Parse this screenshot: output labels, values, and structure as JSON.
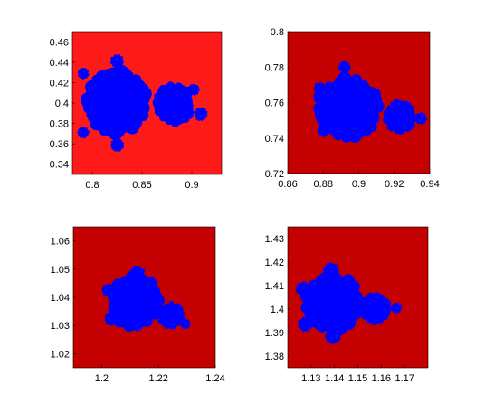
{
  "chart_data": [
    {
      "type": "heatmap",
      "title": "",
      "xlabel": "",
      "ylabel": "",
      "xlim": [
        0.78,
        0.93
      ],
      "ylim": [
        0.33,
        0.47
      ],
      "xticks": [
        "0.8",
        "0.85",
        "0.9"
      ],
      "xtick_values": [
        0.8,
        0.85,
        0.9
      ],
      "yticks": [
        "0.34",
        "0.36",
        "0.38",
        "0.4",
        "0.42",
        "0.44",
        "0.46"
      ],
      "ytick_values": [
        0.34,
        0.36,
        0.38,
        0.4,
        0.42,
        0.44,
        0.46
      ],
      "background_color": "#ff1a1a",
      "set_color": "#0000ff",
      "blobs": [
        {
          "cx": 0.824,
          "cy": 0.401,
          "r": 0.03
        },
        {
          "cx": 0.882,
          "cy": 0.399,
          "r": 0.019
        },
        {
          "cx": 0.791,
          "cy": 0.429,
          "r": 0.005
        },
        {
          "cx": 0.791,
          "cy": 0.371,
          "r": 0.005
        },
        {
          "cx": 0.825,
          "cy": 0.441,
          "r": 0.006
        },
        {
          "cx": 0.825,
          "cy": 0.359,
          "r": 0.006
        },
        {
          "cx": 0.909,
          "cy": 0.389,
          "r": 0.006
        },
        {
          "cx": 0.902,
          "cy": 0.413,
          "r": 0.005
        }
      ]
    },
    {
      "type": "heatmap",
      "title": "",
      "xlabel": "",
      "ylabel": "",
      "xlim": [
        0.86,
        0.94
      ],
      "ylim": [
        0.72,
        0.8
      ],
      "xticks": [
        "0.86",
        "0.88",
        "0.9",
        "0.92",
        "0.94"
      ],
      "xtick_values": [
        0.86,
        0.88,
        0.9,
        0.92,
        0.94
      ],
      "yticks": [
        "0.72",
        "0.74",
        "0.76",
        "0.78",
        "0.8"
      ],
      "ytick_values": [
        0.72,
        0.74,
        0.76,
        0.78,
        0.8
      ],
      "background_color": "#c40000",
      "set_color": "#0000ff",
      "blobs": [
        {
          "cx": 0.894,
          "cy": 0.757,
          "r": 0.0165
        },
        {
          "cx": 0.923,
          "cy": 0.752,
          "r": 0.0085
        },
        {
          "cx": 0.892,
          "cy": 0.78,
          "r": 0.003
        },
        {
          "cx": 0.878,
          "cy": 0.768,
          "r": 0.003
        },
        {
          "cx": 0.88,
          "cy": 0.744,
          "r": 0.003
        },
        {
          "cx": 0.935,
          "cy": 0.751,
          "r": 0.003
        }
      ]
    },
    {
      "type": "heatmap",
      "title": "",
      "xlabel": "",
      "ylabel": "",
      "xlim": [
        1.19,
        1.24
      ],
      "ylim": [
        1.015,
        1.065
      ],
      "xticks": [
        "1.2",
        "1.22",
        "1.24"
      ],
      "xtick_values": [
        1.2,
        1.22,
        1.24
      ],
      "yticks": [
        "1.02",
        "1.03",
        "1.04",
        "1.05",
        "1.06"
      ],
      "ytick_values": [
        1.02,
        1.03,
        1.04,
        1.05,
        1.06
      ],
      "background_color": "#c40000",
      "set_color": "#0000ff",
      "blobs": [
        {
          "cx": 1.2115,
          "cy": 1.0385,
          "r": 0.0087
        },
        {
          "cx": 1.2245,
          "cy": 1.0335,
          "r": 0.0043
        },
        {
          "cx": 1.2125,
          "cy": 1.0485,
          "r": 0.0025
        },
        {
          "cx": 1.2025,
          "cy": 1.0425,
          "r": 0.0022
        },
        {
          "cx": 1.2035,
          "cy": 1.0325,
          "r": 0.0022
        },
        {
          "cx": 1.2295,
          "cy": 1.0305,
          "r": 0.0015
        }
      ]
    },
    {
      "type": "heatmap",
      "title": "",
      "xlabel": "",
      "ylabel": "",
      "xlim": [
        1.12,
        1.18
      ],
      "ylim": [
        1.375,
        1.435
      ],
      "xticks": [
        "1.13",
        "1.14",
        "1.15",
        "1.16",
        "1.17"
      ],
      "xtick_values": [
        1.13,
        1.14,
        1.15,
        1.16,
        1.17
      ],
      "yticks": [
        "1.38",
        "1.39",
        "1.4",
        "1.41",
        "1.42",
        "1.43"
      ],
      "ytick_values": [
        1.38,
        1.39,
        1.4,
        1.41,
        1.42,
        1.43
      ],
      "background_color": "#c40000",
      "set_color": "#0000ff",
      "blobs": [
        {
          "cx": 1.1395,
          "cy": 1.4025,
          "r": 0.0115
        },
        {
          "cx": 1.1575,
          "cy": 1.4005,
          "r": 0.006
        },
        {
          "cx": 1.1385,
          "cy": 1.4165,
          "r": 0.003
        },
        {
          "cx": 1.1265,
          "cy": 1.4085,
          "r": 0.0028
        },
        {
          "cx": 1.1275,
          "cy": 1.3935,
          "r": 0.0028
        },
        {
          "cx": 1.1395,
          "cy": 1.3885,
          "r": 0.003
        },
        {
          "cx": 1.1665,
          "cy": 1.4005,
          "r": 0.002
        }
      ]
    }
  ]
}
